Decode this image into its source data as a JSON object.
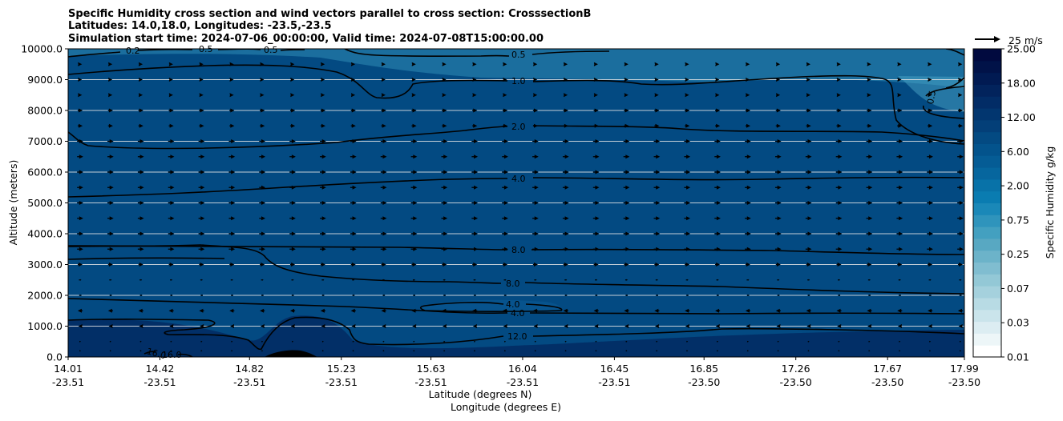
{
  "chart_data": {
    "type": "contourf",
    "title_lines": [
      "Specific Humidity cross section and wind vectors parallel to cross section: CrosssectionB",
      "Latitudes: 14.0,18.0, Longitudes: -23.5,-23.5",
      "Simulation start time: 2024-07-06_00:00:00, Valid time: 2024-07-08T15:00:00.00"
    ],
    "ylabel": "Altitude (meters)",
    "xlabel_line1": "Latitude (degrees N)",
    "xlabel_line2": "Longitude (degrees E)",
    "ylim": [
      0,
      10000
    ],
    "yticks": [
      "0.0",
      "1000.0",
      "2000.0",
      "3000.0",
      "4000.0",
      "5000.0",
      "6000.0",
      "7000.0",
      "8000.0",
      "9000.0",
      "10000.0"
    ],
    "x_frac": [
      0,
      0.1024,
      0.2024,
      0.3048,
      0.4048,
      0.5071,
      0.6095,
      0.7095,
      0.8119,
      0.9143,
      1.0
    ],
    "xticks_lat": [
      "14.01",
      "14.42",
      "14.82",
      "15.23",
      "15.63",
      "16.04",
      "16.45",
      "16.85",
      "17.26",
      "17.67",
      "17.99"
    ],
    "xticks_lon": [
      "-23.51",
      "-23.51",
      "-23.51",
      "-23.51",
      "-23.51",
      "-23.51",
      "-23.51",
      "-23.50",
      "-23.50",
      "-23.50",
      "-23.50"
    ],
    "colorbar": {
      "label": "Specific Humidity g/kg",
      "tick_labels": [
        "0.01",
        "0.03",
        "0.07",
        "0.25",
        "0.75",
        "2.00",
        "6.00",
        "12.00",
        "18.00",
        "25.00"
      ],
      "colors": [
        "#ffffff",
        "#edf6f8",
        "#dcedf2",
        "#cae4eb",
        "#b8dbe4",
        "#a5d1dd",
        "#93c8d6",
        "#80bdd0",
        "#6cb3c9",
        "#58a8c2",
        "#43a0c0",
        "#2f94bc",
        "#1a88b8",
        "#0a7cb1",
        "#0872a8",
        "#06669e",
        "#055c95",
        "#03538c",
        "#034a82",
        "#033f78",
        "#02366f",
        "#022c66",
        "#02235c",
        "#011a52",
        "#011248",
        "#010a3f"
      ]
    },
    "humidity_bands": [
      {
        "alt": 0,
        "q": 12.0
      },
      {
        "alt": 1000,
        "q": 10.0
      },
      {
        "alt": 2000,
        "q": 8.0
      },
      {
        "alt": 3000,
        "q": 7.5
      },
      {
        "alt": 4000,
        "q": 5.5
      },
      {
        "alt": 5000,
        "q": 3.8
      },
      {
        "alt": 6000,
        "q": 2.8
      },
      {
        "alt": 7000,
        "q": 1.9
      },
      {
        "alt": 8000,
        "q": 1.3
      },
      {
        "alt": 9000,
        "q": 0.9
      },
      {
        "alt": 10000,
        "q": 0.55
      }
    ],
    "contour_labels": [
      "0.2",
      "0.5",
      "0.5",
      "0.5",
      "0.5",
      "1.0",
      "2.0",
      "4.0",
      "8.0",
      "8.0",
      "4.0",
      "4.0",
      "12.0",
      "16.0",
      "16.0"
    ],
    "wind_reference": "25 m/s",
    "wind_rows_m": [
      200,
      500,
      1000,
      1500,
      2000,
      2500,
      3000,
      3500,
      4000,
      4500,
      5000,
      5500,
      6000,
      6500,
      7000,
      7500,
      8000,
      8500,
      9000,
      9500
    ],
    "wind_u_ms": [
      0.5,
      1,
      -3,
      -4,
      -2,
      2,
      4,
      5,
      5,
      5,
      5,
      5,
      5,
      5,
      5,
      4,
      4,
      3,
      3,
      3
    ]
  }
}
